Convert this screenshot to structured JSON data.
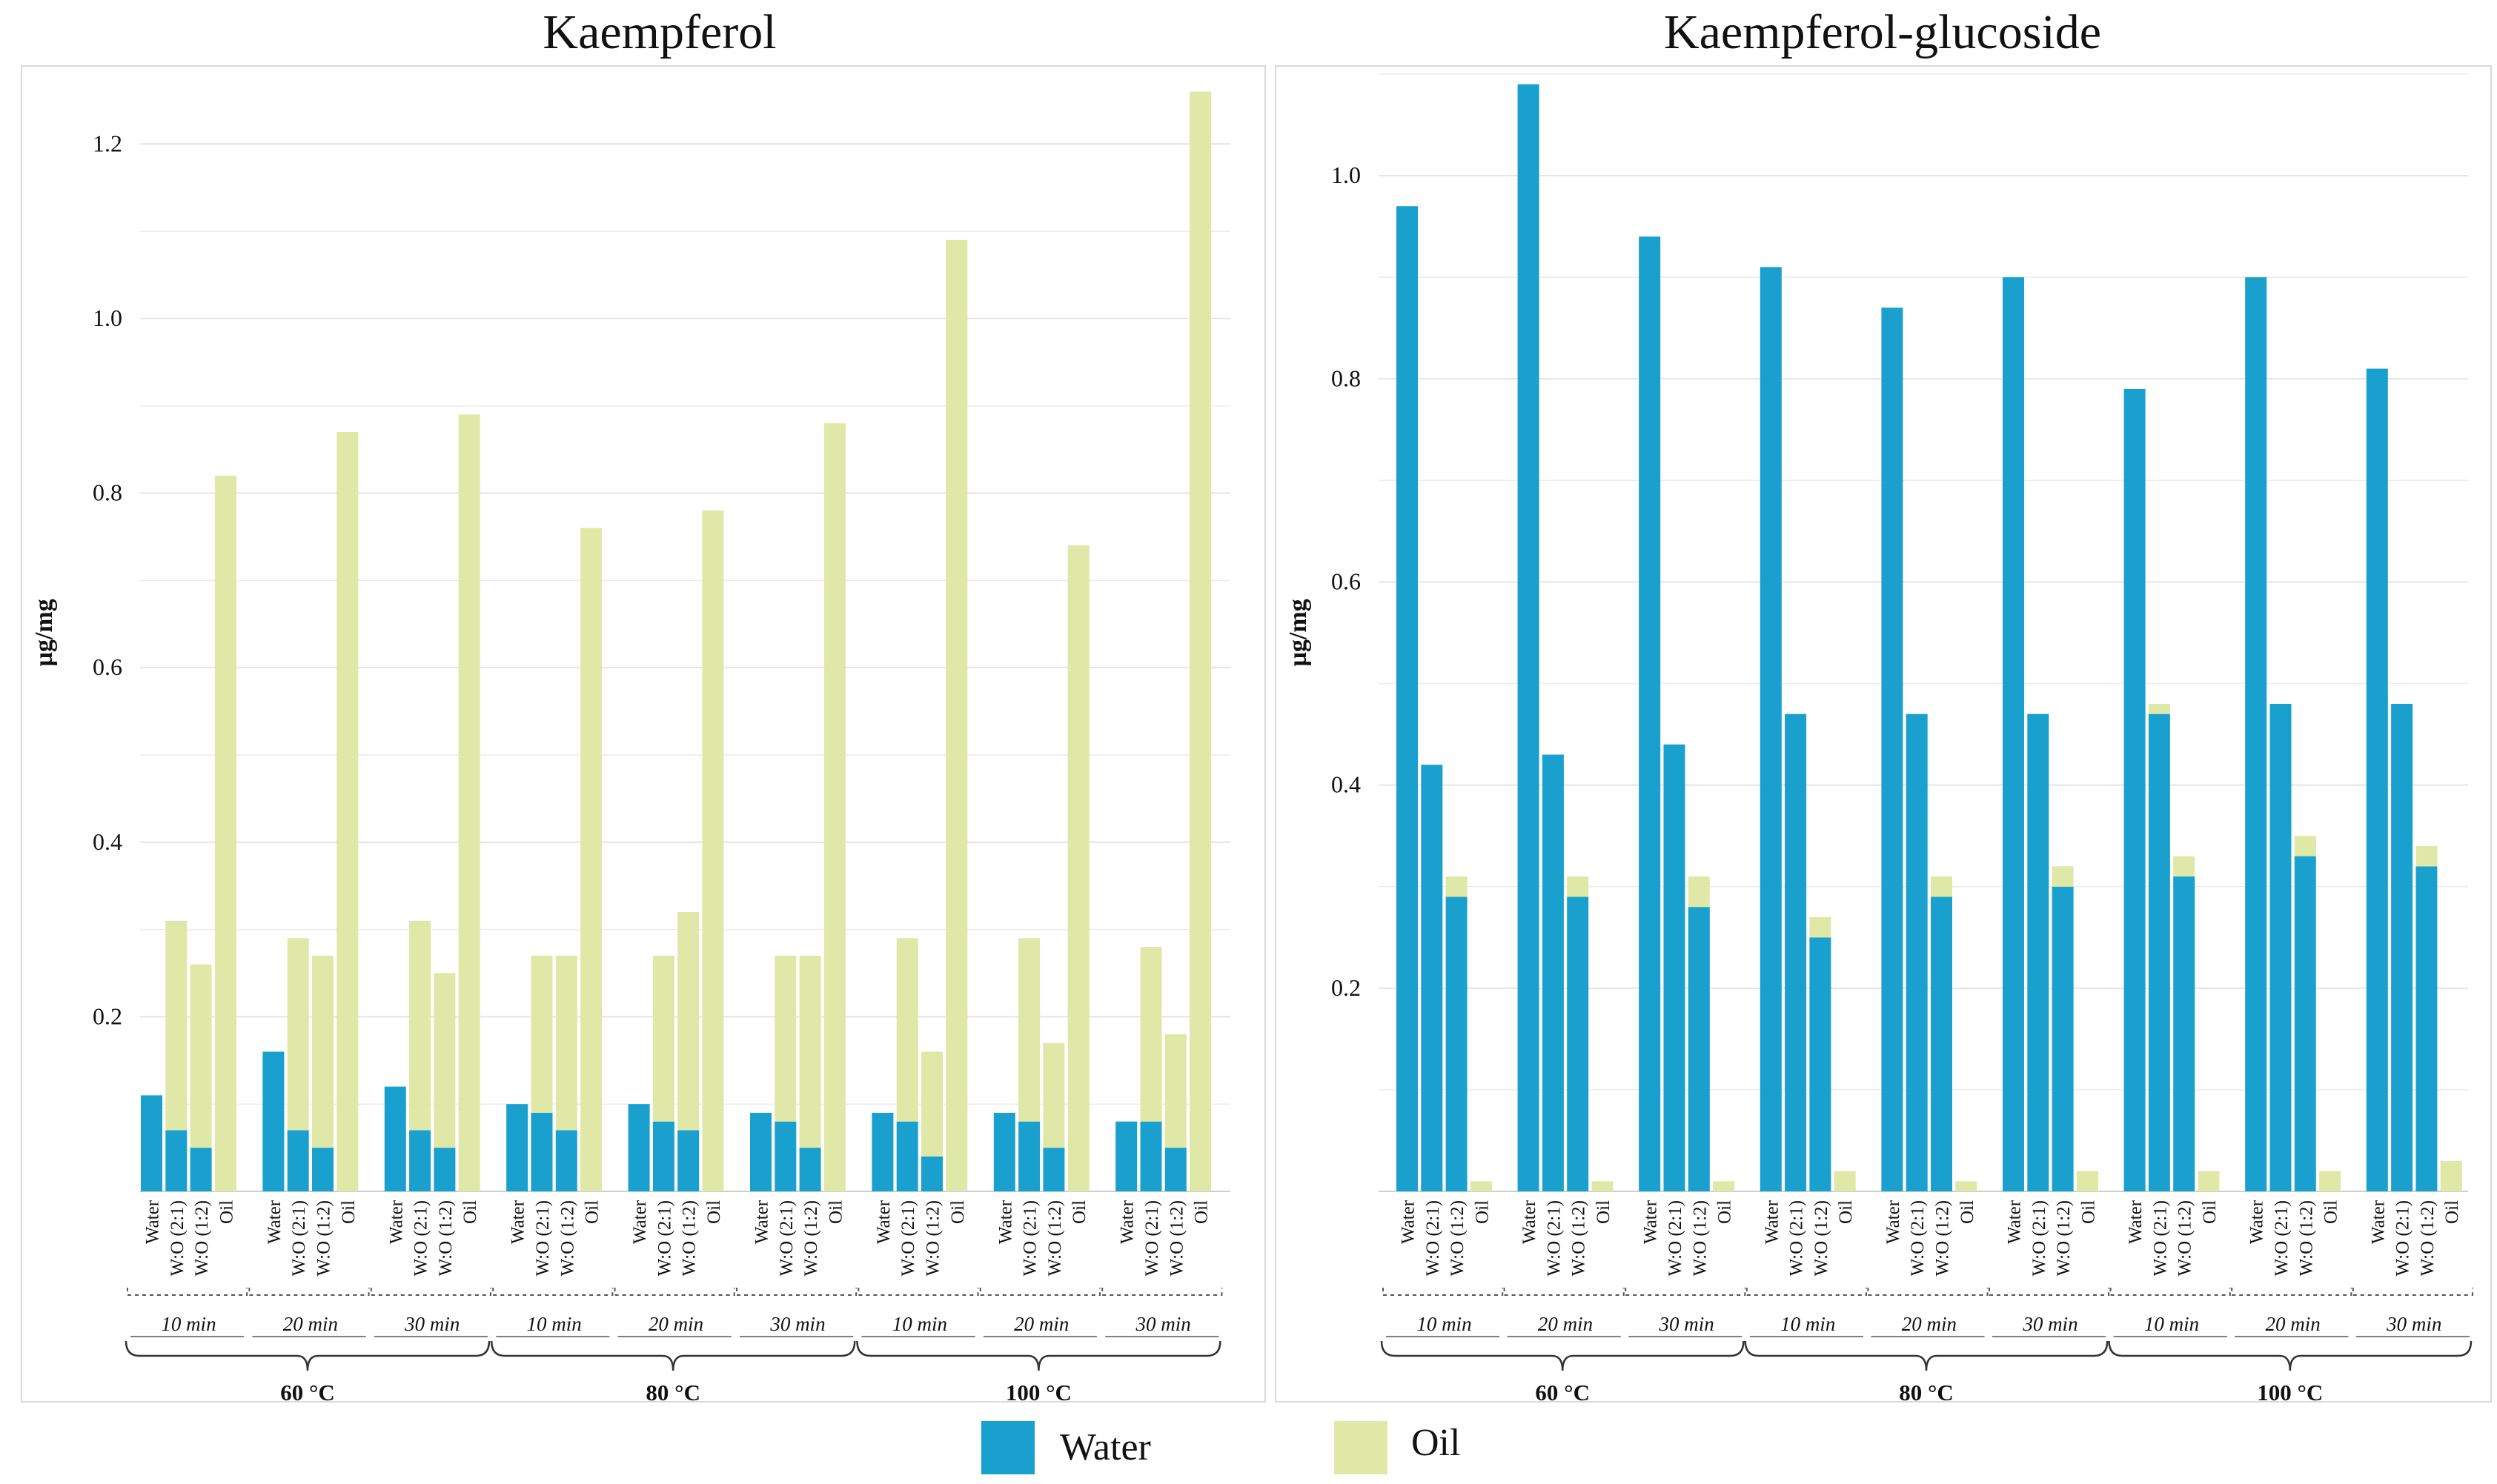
{
  "colors": {
    "water": "#1aa0cf",
    "oil": "#dfe8a6",
    "grid": "#e4e4e4",
    "frame": "#d9d9d9",
    "text": "#111111"
  },
  "legend": {
    "water_label": "Water",
    "oil_label": "Oil"
  },
  "chart_data": [
    {
      "type": "bar",
      "stacked": true,
      "title": "Kaempferol",
      "ylabel": "µg/mg",
      "ylim": [
        0,
        1.28
      ],
      "yticks": [
        0.2,
        0.4,
        0.6,
        0.8,
        1.0,
        1.2
      ],
      "ytick_labels": [
        "0.2",
        "0.4",
        "0.6",
        "0.8",
        "1.0",
        "1.2"
      ],
      "bar_labels": [
        "Water",
        "W:O (2:1)",
        "W:O (1:2)",
        "Oil"
      ],
      "times": [
        "10 min",
        "20 min",
        "30 min"
      ],
      "temperatures": [
        "60 °C",
        "80 °C",
        "100 °C"
      ],
      "series": [
        {
          "name": "Water",
          "values": [
            0.11,
            0.07,
            0.05,
            0,
            0.16,
            0.07,
            0.05,
            0,
            0.12,
            0.07,
            0.05,
            0,
            0.1,
            0.09,
            0.07,
            0,
            0.1,
            0.08,
            0.07,
            0,
            0.09,
            0.08,
            0.05,
            0,
            0.09,
            0.08,
            0.04,
            0,
            0.09,
            0.08,
            0.05,
            0,
            0.08,
            0.08,
            0.05,
            0
          ]
        },
        {
          "name": "Oil",
          "values": [
            0,
            0.24,
            0.21,
            0.82,
            0,
            0.22,
            0.22,
            0.87,
            0,
            0.24,
            0.2,
            0.89,
            0,
            0.18,
            0.2,
            0.76,
            0,
            0.19,
            0.25,
            0.78,
            0,
            0.19,
            0.22,
            0.88,
            0,
            0.21,
            0.12,
            1.09,
            0,
            0.21,
            0.12,
            0.74,
            0,
            0.2,
            0.13,
            1.26
          ]
        }
      ]
    },
    {
      "type": "bar",
      "stacked": true,
      "title": "Kaempferol-glucoside",
      "ylabel": "µg/mg",
      "ylim": [
        0,
        1.1
      ],
      "yticks": [
        0.2,
        0.4,
        0.6,
        0.8,
        1.0
      ],
      "ytick_labels": [
        "0.2",
        "0.4",
        "0.6",
        "0.8",
        "1.0"
      ],
      "bar_labels": [
        "Water",
        "W:O (2:1)",
        "W:O (1:2)",
        "Oil"
      ],
      "times": [
        "10 min",
        "20 min",
        "30 min"
      ],
      "temperatures": [
        "60 °C",
        "80 °C",
        "100 °C"
      ],
      "series": [
        {
          "name": "Water",
          "values": [
            0.97,
            0.42,
            0.29,
            0,
            1.09,
            0.43,
            0.29,
            0,
            0.94,
            0.44,
            0.28,
            0,
            0.91,
            0.47,
            0.25,
            0,
            0.87,
            0.47,
            0.29,
            0,
            0.9,
            0.47,
            0.3,
            0,
            0.79,
            0.47,
            0.31,
            0,
            0.9,
            0.48,
            0.33,
            0,
            0.81,
            0.48,
            0.32,
            0
          ]
        },
        {
          "name": "Oil",
          "values": [
            0,
            0,
            0.02,
            0.01,
            0,
            0,
            0.02,
            0.01,
            0,
            0,
            0.03,
            0.01,
            0,
            0,
            0.02,
            0.02,
            0,
            0,
            0.02,
            0.01,
            0,
            0,
            0.02,
            0.02,
            0,
            0.01,
            0.02,
            0.02,
            0,
            0,
            0.02,
            0.02,
            0,
            0,
            0.02,
            0.03
          ]
        }
      ]
    }
  ]
}
